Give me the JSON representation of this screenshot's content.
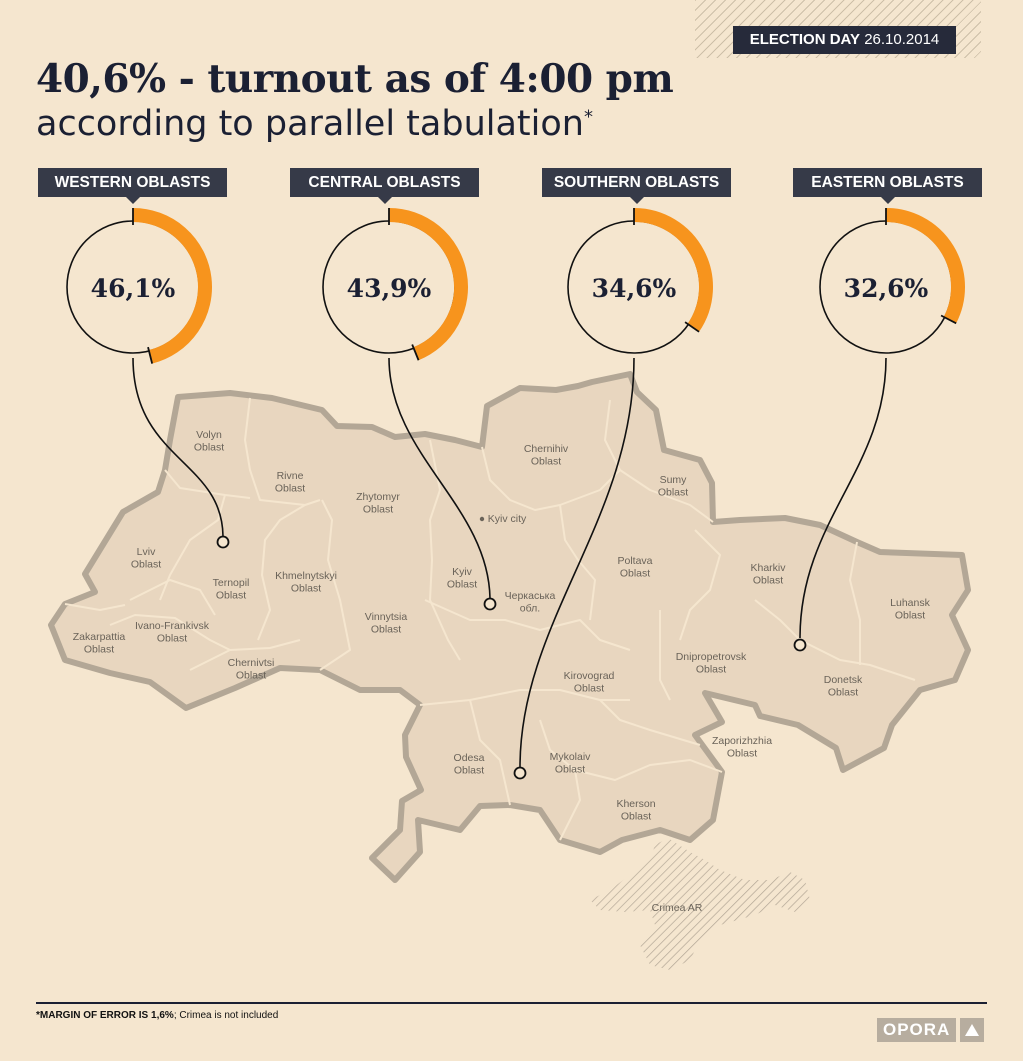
{
  "badge": {
    "prefix": "ELECTION DAY",
    "date": "26.10.2014"
  },
  "title": "40,6% - turnout as of 4:00 pm",
  "subtitle": "according to parallel tabulation",
  "subtitle_mark": "*",
  "groups": [
    {
      "label": "WESTERN OBLASTS",
      "value_text": "46,1%",
      "fraction": 0.461
    },
    {
      "label": "CENTRAL OBLASTS",
      "value_text": "43,9%",
      "fraction": 0.439
    },
    {
      "label": "SOUTHERN OBLASTS",
      "value_text": "34,6%",
      "fraction": 0.346
    },
    {
      "label": "EASTERN OBLASTS",
      "value_text": "32,6%",
      "fraction": 0.326
    }
  ],
  "regions": [
    "Volyn Oblast",
    "Rivne Oblast",
    "Lviv Oblast",
    "Ternopil Oblast",
    "Khmelnytskyi Oblast",
    "Ivano-Frankivsk Oblast",
    "Zakarpattia Oblast",
    "Chernivtsi Oblast",
    "Zhytomyr Oblast",
    "Chernihiv Oblast",
    "Kyiv city",
    "Sumy Oblast",
    "Kyiv Oblast",
    "Черкаська обл.",
    "Poltava Oblast",
    "Kharkiv Oblast",
    "Luhansk Oblast",
    "Vinnytsia Oblast",
    "Dnipropetrovsk Oblast",
    "Kirovograd Oblast",
    "Donetsk Oblast",
    "Zaporizhzhia Oblast",
    "Odesa Oblast",
    "Mykolaiv Oblast",
    "Kherson Oblast",
    "Crimea AR"
  ],
  "footnote": {
    "bold": "*MARGIN OF ERROR IS 1,6%",
    "rest": "; Crimea is not included"
  },
  "logo": "OPORA",
  "colors": {
    "accent": "#f7941d",
    "dark": "#1b2033",
    "label_bg": "#363a48",
    "map_fill": "#e8d6bf",
    "map_border": "#b3a796",
    "background": "#f5e6cf"
  }
}
